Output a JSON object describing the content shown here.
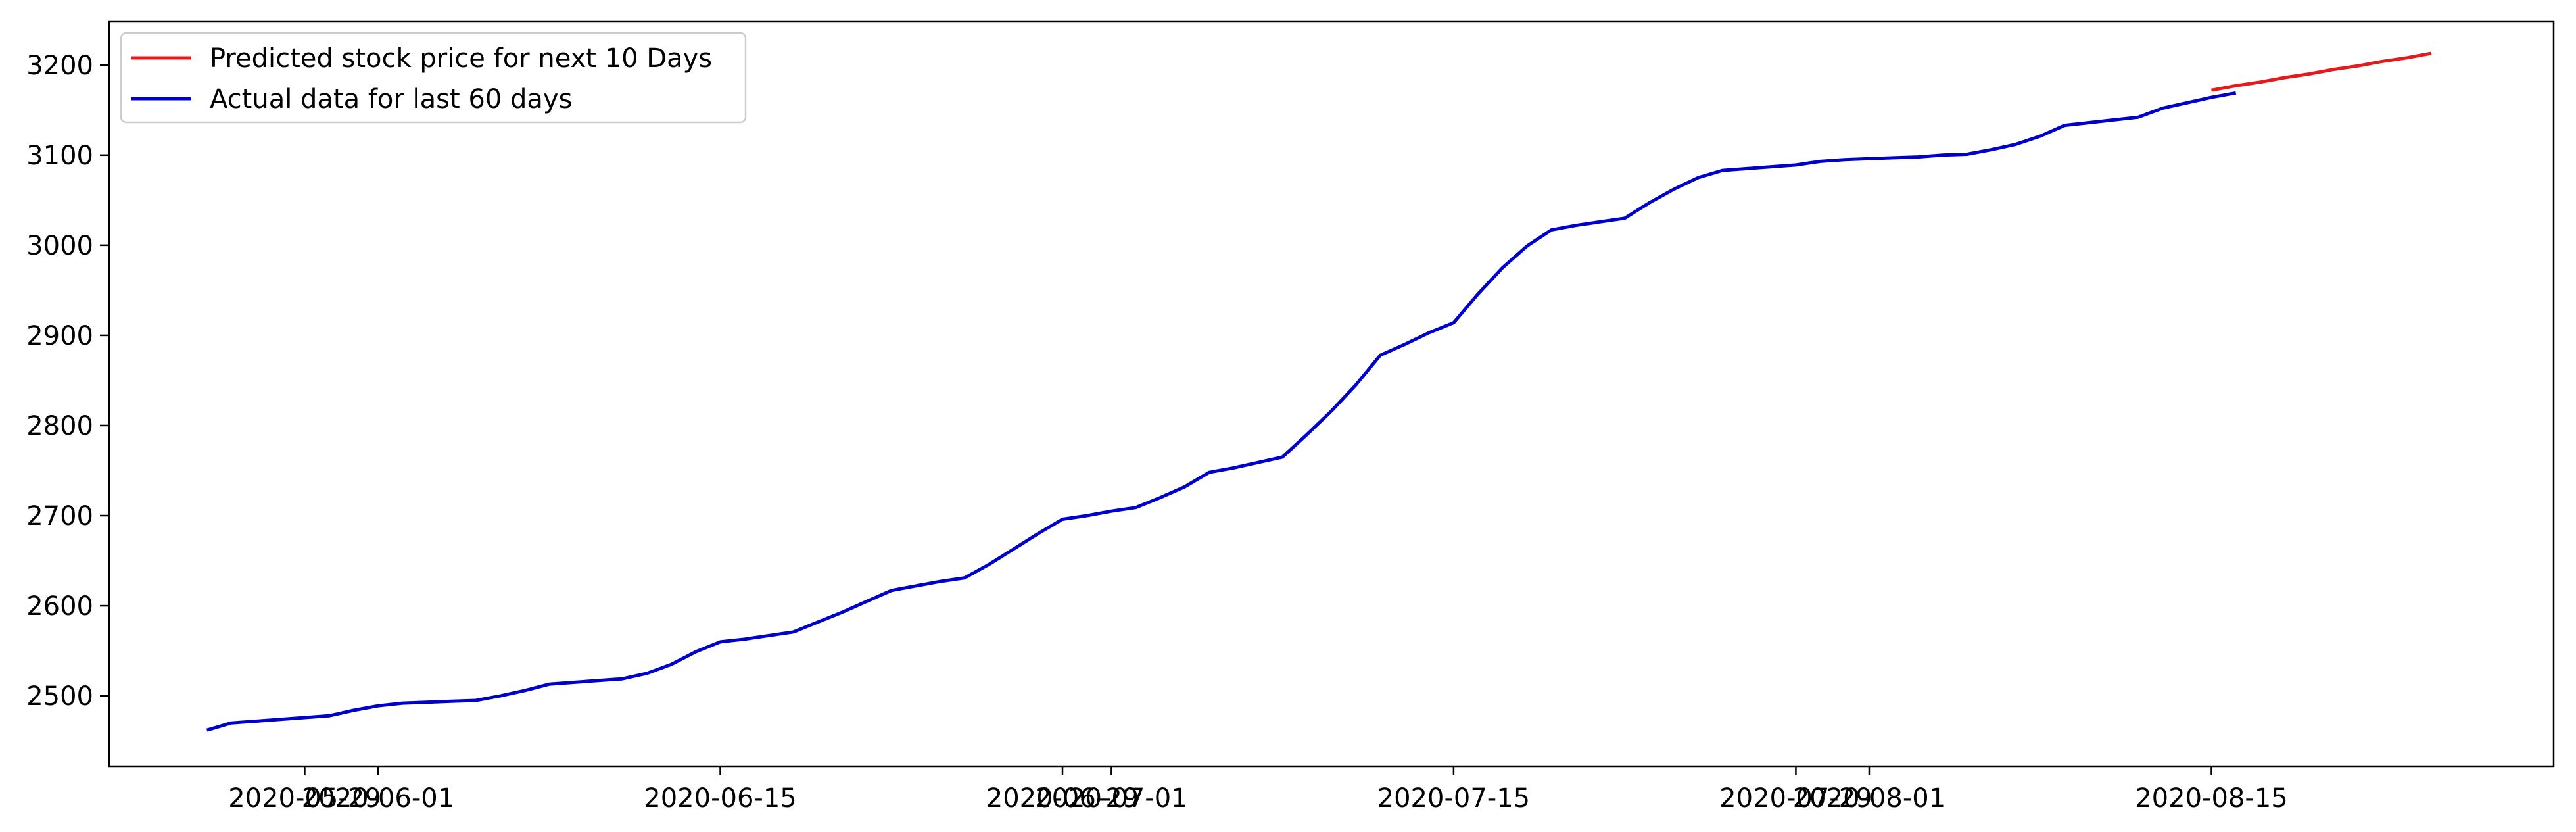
{
  "chart_data": {
    "type": "line",
    "title": "",
    "xlabel": "",
    "ylabel": "",
    "x_type": "date",
    "xlim": [
      "2020-05-21",
      "2020-08-29"
    ],
    "ylim": [
      2422,
      3248
    ],
    "grid": false,
    "legend_position": "top-left",
    "x_ticks": [
      {
        "value": "2020-05-29",
        "label": "2020-05-29"
      },
      {
        "value": "2020-06-01",
        "label": "2020-06-01"
      },
      {
        "value": "2020-06-15",
        "label": "2020-06-15"
      },
      {
        "value": "2020-06-29",
        "label": "2020-06-29"
      },
      {
        "value": "2020-07-01",
        "label": "2020-07-01"
      },
      {
        "value": "2020-07-15",
        "label": "2020-07-15"
      },
      {
        "value": "2020-07-29",
        "label": "2020-07-29"
      },
      {
        "value": "2020-08-01",
        "label": "2020-08-01"
      },
      {
        "value": "2020-08-15",
        "label": "2020-08-15"
      }
    ],
    "y_ticks": [
      2500,
      2600,
      2700,
      2800,
      2900,
      3000,
      3100,
      3200
    ],
    "series": [
      {
        "name": "Predicted stock price for next 10 Days",
        "color": "#e41a1c",
        "points": [
          [
            "2020-08-15",
            3172
          ],
          [
            "2020-08-16",
            3177
          ],
          [
            "2020-08-17",
            3181
          ],
          [
            "2020-08-18",
            3186
          ],
          [
            "2020-08-19",
            3190
          ],
          [
            "2020-08-20",
            3195
          ],
          [
            "2020-08-21",
            3199
          ],
          [
            "2020-08-22",
            3204
          ],
          [
            "2020-08-23",
            3208
          ],
          [
            "2020-08-24",
            3213
          ]
        ]
      },
      {
        "name": "Actual data for last 60 days",
        "color": "#0000cc",
        "points": [
          [
            "2020-05-25",
            2462
          ],
          [
            "2020-05-26",
            2470
          ],
          [
            "2020-05-27",
            2472
          ],
          [
            "2020-05-28",
            2474
          ],
          [
            "2020-05-29",
            2476
          ],
          [
            "2020-05-30",
            2478
          ],
          [
            "2020-05-31",
            2484
          ],
          [
            "2020-06-01",
            2489
          ],
          [
            "2020-06-02",
            2492
          ],
          [
            "2020-06-03",
            2493
          ],
          [
            "2020-06-04",
            2494
          ],
          [
            "2020-06-05",
            2495
          ],
          [
            "2020-06-06",
            2500
          ],
          [
            "2020-06-07",
            2506
          ],
          [
            "2020-06-08",
            2513
          ],
          [
            "2020-06-09",
            2515
          ],
          [
            "2020-06-10",
            2517
          ],
          [
            "2020-06-11",
            2519
          ],
          [
            "2020-06-12",
            2525
          ],
          [
            "2020-06-13",
            2535
          ],
          [
            "2020-06-14",
            2549
          ],
          [
            "2020-06-15",
            2560
          ],
          [
            "2020-06-16",
            2563
          ],
          [
            "2020-06-17",
            2567
          ],
          [
            "2020-06-18",
            2571
          ],
          [
            "2020-06-19",
            2582
          ],
          [
            "2020-06-20",
            2593
          ],
          [
            "2020-06-21",
            2605
          ],
          [
            "2020-06-22",
            2617
          ],
          [
            "2020-06-23",
            2622
          ],
          [
            "2020-06-24",
            2627
          ],
          [
            "2020-06-25",
            2631
          ],
          [
            "2020-06-26",
            2646
          ],
          [
            "2020-06-27",
            2663
          ],
          [
            "2020-06-28",
            2680
          ],
          [
            "2020-06-29",
            2696
          ],
          [
            "2020-06-30",
            2700
          ],
          [
            "2020-07-01",
            2705
          ],
          [
            "2020-07-02",
            2709
          ],
          [
            "2020-07-03",
            2720
          ],
          [
            "2020-07-04",
            2732
          ],
          [
            "2020-07-05",
            2748
          ],
          [
            "2020-07-06",
            2753
          ],
          [
            "2020-07-07",
            2759
          ],
          [
            "2020-07-08",
            2765
          ],
          [
            "2020-07-09",
            2790
          ],
          [
            "2020-07-10",
            2816
          ],
          [
            "2020-07-11",
            2845
          ],
          [
            "2020-07-12",
            2878
          ],
          [
            "2020-07-13",
            2890
          ],
          [
            "2020-07-14",
            2903
          ],
          [
            "2020-07-15",
            2914
          ],
          [
            "2020-07-16",
            2946
          ],
          [
            "2020-07-17",
            2975
          ],
          [
            "2020-07-18",
            2999
          ],
          [
            "2020-07-19",
            3017
          ],
          [
            "2020-07-20",
            3022
          ],
          [
            "2020-07-21",
            3026
          ],
          [
            "2020-07-22",
            3030
          ],
          [
            "2020-07-23",
            3047
          ],
          [
            "2020-07-24",
            3062
          ],
          [
            "2020-07-25",
            3075
          ],
          [
            "2020-07-26",
            3083
          ],
          [
            "2020-07-27",
            3085
          ],
          [
            "2020-07-28",
            3087
          ],
          [
            "2020-07-29",
            3089
          ],
          [
            "2020-07-30",
            3093
          ],
          [
            "2020-07-31",
            3095
          ],
          [
            "2020-08-01",
            3096
          ],
          [
            "2020-08-02",
            3097
          ],
          [
            "2020-08-03",
            3098
          ],
          [
            "2020-08-04",
            3100
          ],
          [
            "2020-08-05",
            3101
          ],
          [
            "2020-08-06",
            3106
          ],
          [
            "2020-08-07",
            3112
          ],
          [
            "2020-08-08",
            3121
          ],
          [
            "2020-08-09",
            3133
          ],
          [
            "2020-08-10",
            3136
          ],
          [
            "2020-08-11",
            3139
          ],
          [
            "2020-08-12",
            3142
          ],
          [
            "2020-08-13",
            3152
          ],
          [
            "2020-08-14",
            3158
          ],
          [
            "2020-08-15",
            3164
          ],
          [
            "2020-08-16",
            3169
          ]
        ]
      }
    ],
    "legend_order": [
      "Predicted stock price for next 10 Days",
      "Actual data for last 60 days"
    ]
  }
}
